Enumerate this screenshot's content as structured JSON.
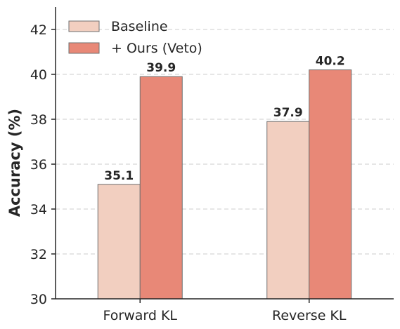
{
  "chart_data": {
    "type": "bar",
    "categories": [
      "Forward KL",
      "Reverse KL"
    ],
    "series": [
      {
        "name": "Baseline",
        "values": [
          35.1,
          37.9
        ],
        "color": "#f2cfc0"
      },
      {
        "name": "+ Ours (Veto)",
        "values": [
          39.9,
          40.2
        ],
        "color": "#e88877"
      }
    ],
    "data_labels": [
      [
        "35.1",
        "37.9"
      ],
      [
        "39.9",
        "40.2"
      ]
    ],
    "title": "",
    "xlabel": "",
    "ylabel": "Accuracy (%)",
    "ylim": [
      30,
      43
    ],
    "yticks": [
      30,
      32,
      34,
      36,
      38,
      40,
      42
    ],
    "grid": "y-dashed",
    "legend_position": "top-left"
  }
}
